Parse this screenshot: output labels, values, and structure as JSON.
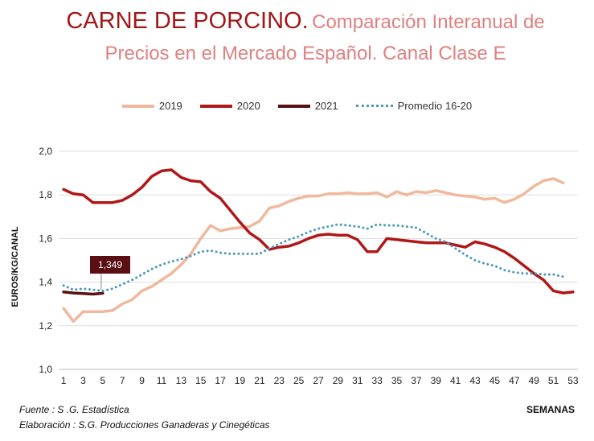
{
  "title": {
    "main": "CARNE DE PORCINO.",
    "sub": "Comparación Interanual de Precios en el Mercado Español. Canal Clase E"
  },
  "footer": {
    "source": "Fuente :  S .G. Estadística",
    "elaboration": "Elaboración : S.G. Producciones Ganaderas y Cinegéticas"
  },
  "chart_data": {
    "type": "line",
    "xlabel": "SEMANAS",
    "ylabel": "EUROS/KG/CANAL",
    "ylim": [
      1.0,
      2.0
    ],
    "yticks": [
      "1,0",
      "1,2",
      "1,4",
      "1,6",
      "1,8",
      "2,0"
    ],
    "xticks": [
      "1",
      "3",
      "5",
      "7",
      "9",
      "11",
      "13",
      "15",
      "17",
      "19",
      "21",
      "23",
      "25",
      "27",
      "29",
      "31",
      "33",
      "35",
      "37",
      "39",
      "41",
      "43",
      "45",
      "47",
      "49",
      "51",
      "53"
    ],
    "annotation": {
      "label": "1,349",
      "week": 5,
      "series": "2021",
      "color": "#5a0f14"
    },
    "series": [
      {
        "name": "2019",
        "color": "#f0b89c",
        "style": "solid",
        "x": [
          1,
          2,
          3,
          4,
          5,
          6,
          7,
          8,
          9,
          10,
          11,
          12,
          13,
          14,
          15,
          16,
          17,
          18,
          19,
          20,
          21,
          22,
          23,
          24,
          25,
          26,
          27,
          28,
          29,
          30,
          31,
          32,
          33,
          34,
          35,
          36,
          37,
          38,
          39,
          40,
          41,
          42,
          43,
          44,
          45,
          46,
          47,
          48,
          49,
          50,
          51,
          52
        ],
        "values": [
          1.28,
          1.22,
          1.265,
          1.265,
          1.265,
          1.27,
          1.3,
          1.32,
          1.36,
          1.38,
          1.41,
          1.44,
          1.48,
          1.53,
          1.6,
          1.66,
          1.635,
          1.645,
          1.65,
          1.655,
          1.68,
          1.74,
          1.75,
          1.77,
          1.785,
          1.795,
          1.795,
          1.805,
          1.805,
          1.81,
          1.805,
          1.805,
          1.81,
          1.79,
          1.815,
          1.8,
          1.815,
          1.81,
          1.82,
          1.81,
          1.8,
          1.795,
          1.79,
          1.78,
          1.785,
          1.765,
          1.78,
          1.805,
          1.84,
          1.865,
          1.875,
          1.855
        ]
      },
      {
        "name": "2020",
        "color": "#b01818",
        "style": "solid",
        "x": [
          1,
          2,
          3,
          4,
          5,
          6,
          7,
          8,
          9,
          10,
          11,
          12,
          13,
          14,
          15,
          16,
          17,
          18,
          19,
          20,
          21,
          22,
          23,
          24,
          25,
          26,
          27,
          28,
          29,
          30,
          31,
          32,
          33,
          34,
          35,
          36,
          37,
          38,
          39,
          40,
          41,
          42,
          43,
          44,
          45,
          46,
          47,
          48,
          49,
          50,
          51,
          52,
          53
        ],
        "values": [
          1.825,
          1.805,
          1.8,
          1.765,
          1.765,
          1.765,
          1.775,
          1.8,
          1.835,
          1.885,
          1.91,
          1.915,
          1.88,
          1.865,
          1.86,
          1.815,
          1.785,
          1.73,
          1.675,
          1.625,
          1.595,
          1.55,
          1.56,
          1.565,
          1.58,
          1.6,
          1.615,
          1.62,
          1.615,
          1.615,
          1.595,
          1.54,
          1.54,
          1.6,
          1.595,
          1.59,
          1.585,
          1.58,
          1.58,
          1.58,
          1.57,
          1.56,
          1.585,
          1.575,
          1.56,
          1.54,
          1.51,
          1.475,
          1.44,
          1.41,
          1.36,
          1.35,
          1.355
        ]
      },
      {
        "name": "2021",
        "color": "#5a0f14",
        "style": "solid",
        "x": [
          1,
          2,
          3,
          4,
          5
        ],
        "values": [
          1.355,
          1.35,
          1.348,
          1.345,
          1.349
        ]
      },
      {
        "name": "Promedio 16-20",
        "color": "#4a9ab8",
        "style": "dotted",
        "x": [
          1,
          2,
          3,
          4,
          5,
          6,
          7,
          8,
          9,
          10,
          11,
          12,
          13,
          14,
          15,
          16,
          17,
          18,
          19,
          20,
          21,
          22,
          23,
          24,
          25,
          26,
          27,
          28,
          29,
          30,
          31,
          32,
          33,
          34,
          35,
          36,
          37,
          38,
          39,
          40,
          41,
          42,
          43,
          44,
          45,
          46,
          47,
          48,
          49,
          50,
          51,
          52
        ],
        "values": [
          1.385,
          1.365,
          1.37,
          1.365,
          1.36,
          1.37,
          1.39,
          1.41,
          1.435,
          1.46,
          1.48,
          1.495,
          1.505,
          1.52,
          1.54,
          1.545,
          1.535,
          1.53,
          1.53,
          1.53,
          1.53,
          1.555,
          1.575,
          1.595,
          1.61,
          1.63,
          1.645,
          1.655,
          1.665,
          1.66,
          1.655,
          1.645,
          1.665,
          1.66,
          1.66,
          1.655,
          1.65,
          1.625,
          1.6,
          1.585,
          1.555,
          1.525,
          1.5,
          1.485,
          1.475,
          1.455,
          1.445,
          1.44,
          1.44,
          1.435,
          1.435,
          1.425
        ]
      }
    ]
  }
}
